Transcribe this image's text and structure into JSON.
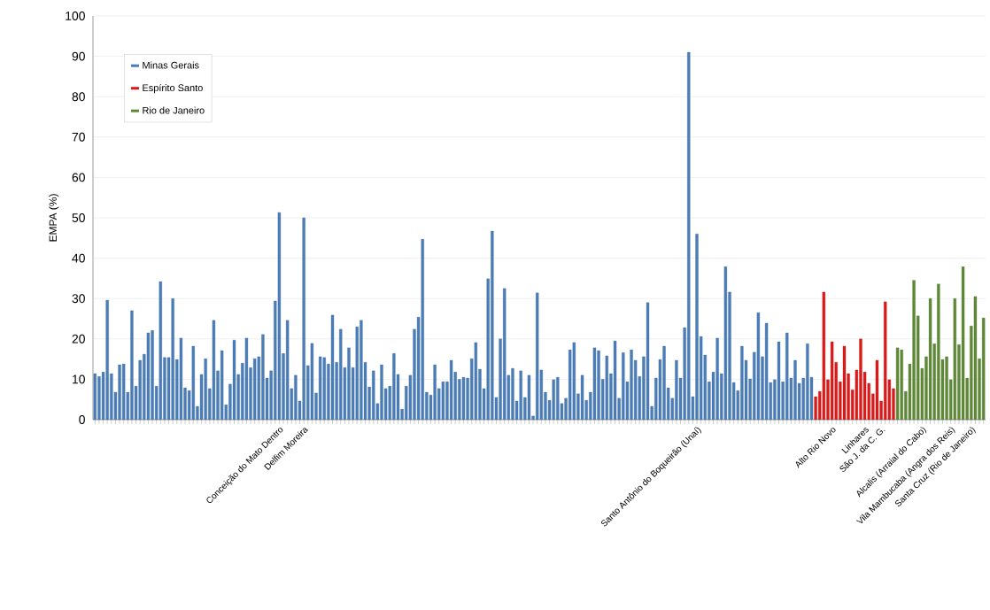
{
  "chart_data": {
    "type": "bar",
    "ylabel": "EMPA (%)",
    "categories": [
      null,
      null,
      null,
      null,
      null,
      null,
      null,
      null,
      null,
      null,
      null,
      null,
      null,
      null,
      null,
      null,
      null,
      null,
      null,
      null,
      null,
      null,
      null,
      null,
      null,
      null,
      null,
      null,
      null,
      null,
      null,
      null,
      null,
      null,
      null,
      null,
      null,
      null,
      null,
      null,
      null,
      null,
      null,
      null,
      null,
      "Conceição do Mato Dentro",
      null,
      null,
      null,
      null,
      null,
      "Delfim Moreira",
      null,
      null,
      null,
      null,
      null,
      null,
      null,
      null,
      null,
      null,
      null,
      null,
      null,
      null,
      null,
      null,
      null,
      null,
      null,
      null,
      null,
      null,
      null,
      null,
      null,
      null,
      null,
      null,
      null,
      null,
      null,
      null,
      null,
      null,
      null,
      null,
      null,
      null,
      null,
      null,
      null,
      null,
      null,
      null,
      null,
      null,
      null,
      null,
      null,
      null,
      null,
      null,
      null,
      null,
      null,
      null,
      null,
      null,
      null,
      null,
      null,
      null,
      null,
      null,
      null,
      null,
      null,
      null,
      null,
      null,
      null,
      null,
      null,
      null,
      null,
      null,
      null,
      null,
      null,
      null,
      null,
      null,
      null,
      null,
      null,
      null,
      null,
      null,
      null,
      null,
      null,
      null,
      null,
      null,
      null,
      "Santo Antônio do Boqueirão (Unaí)",
      null,
      null,
      null,
      null,
      null,
      null,
      null,
      null,
      null,
      null,
      null,
      null,
      null,
      null,
      null,
      null,
      null,
      null,
      null,
      null,
      null,
      null,
      null,
      null,
      null,
      null,
      null,
      null,
      null,
      null,
      null,
      null,
      "Alto Rio Novo",
      null,
      null,
      null,
      null,
      null,
      null,
      null,
      "Linhares",
      null,
      null,
      null,
      "São J. da C. G.",
      null,
      null,
      null,
      null,
      null,
      null,
      null,
      null,
      null,
      "Alcalis (Arraial do Cabo)",
      null,
      null,
      null,
      null,
      null,
      null,
      "Vila Mambucaba (Angra dos Reis)",
      null,
      null,
      null,
      null,
      "Santa Cruz (Rio de Janeiro)",
      null,
      null,
      null
    ],
    "series": [
      {
        "name": "Minas Gerais",
        "color": "#4a7ebb",
        "values": [
          11.4,
          10.7,
          11.8,
          29.6,
          11.4,
          6.8,
          13.6,
          13.8,
          6.8,
          27,
          8.3,
          14.7,
          16.2,
          21.5,
          22.1,
          8.3,
          34.2,
          15.4,
          15.4,
          30,
          14.9,
          20.2,
          7.9,
          7.2,
          18.2,
          3.3,
          11.2,
          15.1,
          7.7,
          24.6,
          12.1,
          17.1,
          3.7,
          8.8,
          19.7,
          11.2,
          14,
          20.2,
          12.9,
          15.1,
          15.6,
          21.1,
          10.3,
          12.1,
          29.4,
          51.3,
          16.4,
          24.6,
          7.7,
          11,
          4.6,
          50,
          13.4,
          18.9,
          6.6,
          15.6,
          15.4,
          13.8,
          25.9,
          14.2,
          22.4,
          12.9,
          17.8,
          12.9,
          23,
          24.6,
          14.2,
          8.1,
          12.1,
          4,
          13.6,
          7.7,
          8.3,
          16.4,
          11.2,
          2.6,
          8.3,
          11,
          22.4,
          25.4,
          44.7,
          6.8,
          6.1,
          13.6,
          7.7,
          9.4,
          9.4,
          14.7,
          11.8,
          10,
          10.5,
          10.3,
          15.1,
          19.1,
          12.5,
          7.7,
          34.9,
          46.7,
          5.5,
          20,
          32.5,
          11,
          12.7,
          4.6,
          12.1,
          5.5,
          11,
          0.9,
          31.4,
          12.3,
          6.8,
          4.8,
          9.9,
          10.5,
          4,
          5.3,
          17.3,
          19.1,
          6.4,
          11,
          4.8,
          6.8,
          17.8,
          17.1,
          10,
          15.8,
          11.4,
          19.5,
          5.3,
          16.6,
          9.4,
          17.3,
          14.7,
          10.7,
          15.6,
          29,
          3.3,
          10.3,
          14.9,
          18.2,
          7.9,
          5.3,
          14.7,
          10.3,
          22.8,
          91,
          5.7,
          46,
          20.6,
          16,
          9.4,
          11.8,
          20.2,
          11.4,
          37.9,
          31.6,
          9.2,
          7.2,
          18.2,
          14.7,
          10.1,
          16.7,
          26.5,
          15.6,
          23.9,
          9.2,
          9.9,
          19.3,
          9.4,
          21.5,
          10.3,
          14.7,
          9,
          10.3,
          18.8,
          10.5,
          null,
          null,
          null,
          null,
          null,
          null,
          null,
          null,
          null,
          null,
          null,
          null,
          null,
          null,
          null,
          null,
          null,
          null,
          null,
          null,
          null,
          null,
          null,
          null,
          null,
          null,
          null,
          null,
          null,
          null,
          null,
          null,
          null,
          null,
          null,
          null,
          null,
          null,
          null,
          null,
          null,
          null
        ]
      },
      {
        "name": "Espírito Santo",
        "color": "#e01818",
        "values": [
          null,
          null,
          null,
          null,
          null,
          null,
          null,
          null,
          null,
          null,
          null,
          null,
          null,
          null,
          null,
          null,
          null,
          null,
          null,
          null,
          null,
          null,
          null,
          null,
          null,
          null,
          null,
          null,
          null,
          null,
          null,
          null,
          null,
          null,
          null,
          null,
          null,
          null,
          null,
          null,
          null,
          null,
          null,
          null,
          null,
          null,
          null,
          null,
          null,
          null,
          null,
          null,
          null,
          null,
          null,
          null,
          null,
          null,
          null,
          null,
          null,
          null,
          null,
          null,
          null,
          null,
          null,
          null,
          null,
          null,
          null,
          null,
          null,
          null,
          null,
          null,
          null,
          null,
          null,
          null,
          null,
          null,
          null,
          null,
          null,
          null,
          null,
          null,
          null,
          null,
          null,
          null,
          null,
          null,
          null,
          null,
          null,
          null,
          null,
          null,
          null,
          null,
          null,
          null,
          null,
          null,
          null,
          null,
          null,
          null,
          null,
          null,
          null,
          null,
          null,
          null,
          null,
          null,
          null,
          null,
          null,
          null,
          null,
          null,
          null,
          null,
          null,
          null,
          null,
          null,
          null,
          null,
          null,
          null,
          null,
          null,
          null,
          null,
          null,
          null,
          null,
          null,
          null,
          null,
          null,
          null,
          null,
          null,
          null,
          null,
          null,
          null,
          null,
          null,
          null,
          null,
          null,
          null,
          null,
          null,
          null,
          null,
          null,
          null,
          null,
          null,
          null,
          null,
          null,
          null,
          null,
          null,
          null,
          null,
          null,
          null,
          5.7,
          7,
          31.6,
          9.9,
          19.3,
          14.2,
          9.4,
          18.2,
          11.4,
          7.4,
          12.3,
          20,
          11.8,
          9,
          6.4,
          14.7,
          4.6,
          29.2,
          9.9,
          7.7,
          null,
          null,
          null,
          null,
          null,
          null,
          null,
          null,
          null,
          null,
          null,
          null,
          null,
          null,
          null,
          null,
          null,
          null,
          null,
          null,
          null,
          null
        ]
      },
      {
        "name": "Rio de Janeiro",
        "color": "#5f8a35",
        "values": [
          null,
          null,
          null,
          null,
          null,
          null,
          null,
          null,
          null,
          null,
          null,
          null,
          null,
          null,
          null,
          null,
          null,
          null,
          null,
          null,
          null,
          null,
          null,
          null,
          null,
          null,
          null,
          null,
          null,
          null,
          null,
          null,
          null,
          null,
          null,
          null,
          null,
          null,
          null,
          null,
          null,
          null,
          null,
          null,
          null,
          null,
          null,
          null,
          null,
          null,
          null,
          null,
          null,
          null,
          null,
          null,
          null,
          null,
          null,
          null,
          null,
          null,
          null,
          null,
          null,
          null,
          null,
          null,
          null,
          null,
          null,
          null,
          null,
          null,
          null,
          null,
          null,
          null,
          null,
          null,
          null,
          null,
          null,
          null,
          null,
          null,
          null,
          null,
          null,
          null,
          null,
          null,
          null,
          null,
          null,
          null,
          null,
          null,
          null,
          null,
          null,
          null,
          null,
          null,
          null,
          null,
          null,
          null,
          null,
          null,
          null,
          null,
          null,
          null,
          null,
          null,
          null,
          null,
          null,
          null,
          null,
          null,
          null,
          null,
          null,
          null,
          null,
          null,
          null,
          null,
          null,
          null,
          null,
          null,
          null,
          null,
          null,
          null,
          null,
          null,
          null,
          null,
          null,
          null,
          null,
          null,
          null,
          null,
          null,
          null,
          null,
          null,
          null,
          null,
          null,
          null,
          null,
          null,
          null,
          null,
          null,
          null,
          null,
          null,
          null,
          null,
          null,
          null,
          null,
          null,
          null,
          null,
          null,
          null,
          null,
          null,
          null,
          null,
          null,
          null,
          null,
          null,
          null,
          null,
          null,
          null,
          null,
          null,
          null,
          null,
          null,
          null,
          null,
          null,
          null,
          null,
          17.8,
          17.3,
          7,
          13.8,
          34.5,
          25.7,
          12.7,
          15.6,
          30,
          18.8,
          33.6,
          14.9,
          15.6,
          9.9,
          30,
          18.6,
          37.9,
          10.3,
          23.2,
          30.5,
          15.1,
          25.2
        ]
      }
    ],
    "ylim": [
      0,
      100
    ],
    "yticks": [
      0,
      10,
      20,
      30,
      40,
      50,
      60,
      70,
      80,
      90,
      100
    ],
    "grid": "y",
    "legend": "top left"
  }
}
